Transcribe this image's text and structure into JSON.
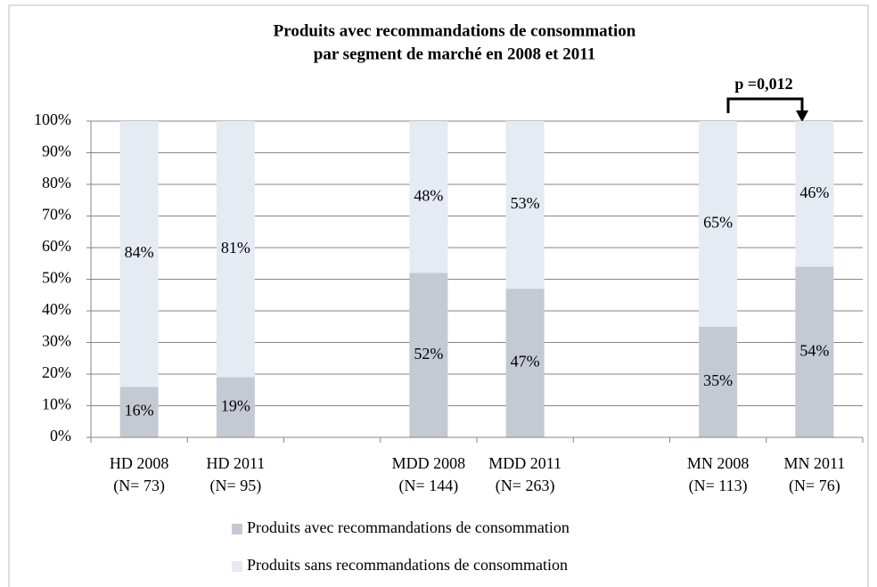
{
  "chart_data": {
    "type": "stacked_bar",
    "title": [
      "Produits avec recommandations  de consommation",
      "par segment de marché en  2008 et 2011"
    ],
    "categories": [
      [
        "HD 2008",
        "(N= 73)"
      ],
      [
        "HD 2011",
        "(N= 95)"
      ],
      null,
      [
        "MDD 2008",
        "(N= 144)"
      ],
      [
        "MDD 2011",
        "(N= 263)"
      ],
      null,
      [
        "MN 2008",
        "(N= 113)"
      ],
      [
        "MN 2011",
        "(N= 76)"
      ]
    ],
    "series": [
      {
        "name": "Produits avec recommandations de consommation",
        "color": "#c4c9d3",
        "values": [
          16,
          19,
          null,
          52,
          47,
          null,
          35,
          54
        ],
        "value_labels": [
          "16%",
          "19%",
          null,
          "52%",
          "47%",
          null,
          "35%",
          "54%"
        ]
      },
      {
        "name": "Produits sans recommandations de consommation",
        "color": "#e5eaf3",
        "values": [
          84,
          81,
          null,
          48,
          53,
          null,
          65,
          46
        ],
        "value_labels": [
          "84%",
          "81%",
          null,
          "48%",
          "53%",
          null,
          "65%",
          "46%"
        ]
      }
    ],
    "ylim": [
      0,
      100
    ],
    "yticks": [
      {
        "value": 0,
        "label": "0%"
      },
      {
        "value": 10,
        "label": "10%"
      },
      {
        "value": 20,
        "label": "20%"
      },
      {
        "value": 30,
        "label": "30%"
      },
      {
        "value": 40,
        "label": "40%"
      },
      {
        "value": 50,
        "label": "50%"
      },
      {
        "value": 60,
        "label": "60%"
      },
      {
        "value": 70,
        "label": "70%"
      },
      {
        "value": 80,
        "label": "80%"
      },
      {
        "value": 90,
        "label": "90%"
      },
      {
        "value": 100,
        "label": "100%"
      }
    ],
    "grid": true,
    "annotation": "p =0,012"
  }
}
